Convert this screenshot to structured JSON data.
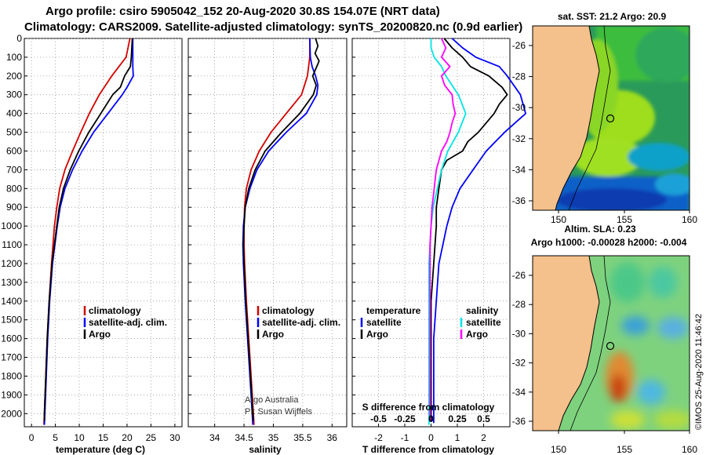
{
  "header": {
    "line1": "Argo profile: csiro 5905042_152 20-Aug-2020 30.8S 154.07E (NRT data)",
    "line2": "Climatology: CARS2009. Satellite-adjusted climatology: synTS_20200820.nc (0.9d earlier)"
  },
  "colors": {
    "climatology": "#d40000",
    "satellite": "#0000ff",
    "argo": "#000000",
    "sat_salinity": "#00e5e5",
    "argo_salinity": "#ff00ff",
    "land": "#f4c08c"
  },
  "depth_axis": {
    "ticks": [
      0,
      100,
      200,
      300,
      400,
      500,
      600,
      700,
      800,
      900,
      1000,
      1100,
      1200,
      1300,
      1400,
      1500,
      1600,
      1700,
      1800,
      1900,
      2000
    ],
    "ylim": [
      0,
      2070
    ]
  },
  "chart_data": [
    {
      "type": "line",
      "id": "temperature",
      "xlabel": "temperature (deg C)",
      "ylabel": "depth",
      "xlim": [
        -1.5,
        31.5
      ],
      "xticks": [
        0,
        5,
        10,
        15,
        20,
        25,
        30
      ],
      "legend": [
        "climatology",
        "satellite-adj. clim.",
        "Argo"
      ],
      "series": [
        {
          "name": "climatology",
          "depth": [
            0,
            50,
            100,
            200,
            300,
            400,
            500,
            600,
            700,
            800,
            900,
            1000,
            1200,
            1400,
            1600,
            1800,
            2000,
            2060
          ],
          "values": [
            20.6,
            20.2,
            19.8,
            16.8,
            14.2,
            12.1,
            10.3,
            8.6,
            7.0,
            5.9,
            5.3,
            4.8,
            4.2,
            3.7,
            3.3,
            3.0,
            2.7,
            2.6
          ]
        },
        {
          "name": "satellite-adj. clim.",
          "depth": [
            0,
            50,
            100,
            150,
            200,
            260,
            300,
            400,
            500,
            600,
            700,
            800,
            900,
            1000,
            1200,
            1400,
            1600,
            1800,
            2000,
            2060
          ],
          "values": [
            21.2,
            21.2,
            21.2,
            21.2,
            21.3,
            20.0,
            19.0,
            16.0,
            13.0,
            10.6,
            8.6,
            7.0,
            6.0,
            5.4,
            4.4,
            3.8,
            3.4,
            3.1,
            2.8,
            2.7
          ]
        },
        {
          "name": "Argo",
          "depth": [
            0,
            50,
            100,
            150,
            200,
            260,
            300,
            400,
            500,
            600,
            700,
            800,
            900,
            1000,
            1200,
            1400,
            1600,
            1800,
            2000,
            2040
          ],
          "values": [
            21.1,
            21.0,
            20.9,
            20.7,
            19.5,
            18.6,
            17.0,
            14.5,
            12.0,
            9.9,
            8.1,
            6.7,
            5.8,
            5.3,
            4.3,
            3.7,
            3.3,
            3.0,
            2.7,
            2.7
          ]
        }
      ]
    },
    {
      "type": "line",
      "id": "salinity",
      "xlabel": "salinity",
      "ylabel": "depth",
      "xlim": [
        33.55,
        36.25
      ],
      "xticks": [
        34,
        34.5,
        35,
        35.5,
        36
      ],
      "legend": [
        "climatology",
        "satellite-adj. clim.",
        "Argo"
      ],
      "annotation": [
        "Argo Australia",
        "PI: Susan Wijffels"
      ],
      "series": [
        {
          "name": "climatology",
          "depth": [
            0,
            100,
            200,
            300,
            400,
            500,
            600,
            700,
            800,
            900,
            1000,
            1100,
            1200,
            1400,
            1600,
            1800,
            2000,
            2060
          ],
          "values": [
            35.62,
            35.62,
            35.58,
            35.48,
            35.22,
            34.96,
            34.76,
            34.62,
            34.54,
            34.51,
            34.5,
            34.5,
            34.51,
            34.54,
            34.58,
            34.62,
            34.66,
            34.67
          ]
        },
        {
          "name": "satellite-adj. clim.",
          "depth": [
            0,
            100,
            150,
            200,
            250,
            300,
            400,
            500,
            600,
            700,
            800,
            900,
            1000,
            1100,
            1200,
            1400,
            1600,
            1800,
            2000,
            2060
          ],
          "values": [
            35.62,
            35.63,
            35.66,
            35.72,
            35.76,
            35.74,
            35.56,
            35.22,
            34.92,
            34.72,
            34.6,
            34.52,
            34.49,
            34.48,
            34.49,
            34.52,
            34.56,
            34.6,
            34.64,
            34.65
          ]
        },
        {
          "name": "Argo",
          "depth": [
            0,
            40,
            80,
            120,
            150,
            200,
            250,
            300,
            400,
            500,
            600,
            700,
            800,
            900,
            1000,
            1100,
            1200,
            1400,
            1600,
            1800,
            2000,
            2040
          ],
          "values": [
            35.72,
            35.76,
            35.71,
            35.78,
            35.74,
            35.67,
            35.73,
            35.68,
            35.45,
            35.14,
            34.86,
            34.69,
            34.58,
            34.52,
            34.5,
            34.49,
            34.5,
            34.53,
            34.57,
            34.61,
            34.65,
            34.66
          ]
        }
      ]
    },
    {
      "type": "line",
      "id": "difference",
      "xlabel": "T difference from climatology",
      "secondary_xlabel": "S difference from climatology",
      "xlim": [
        -3.0,
        3.0
      ],
      "xticks": [
        -2,
        -1,
        0,
        1,
        2
      ],
      "secondary_xticks_labels": [
        "-0.5",
        "-0.25",
        "0",
        "0.25",
        "0.5"
      ],
      "secondary_xticks": [
        -0.5,
        -0.25,
        0,
        0.25,
        0.5
      ],
      "secondary_xlim": [
        -0.75,
        0.75
      ],
      "legend_temperature": [
        "temperature",
        "satellite",
        "Argo"
      ],
      "legend_salinity": [
        "salinity",
        "satellite",
        "Argo"
      ],
      "series": [
        {
          "name": "T satellite",
          "axis": "T",
          "depth": [
            0,
            50,
            100,
            150,
            200,
            300,
            400,
            500,
            600,
            700,
            800,
            900,
            1000,
            1200,
            1400,
            1600,
            1800,
            2000,
            2050
          ],
          "values": [
            0.8,
            1.2,
            1.7,
            2.6,
            2.9,
            3.4,
            3.6,
            2.8,
            2.1,
            1.6,
            1.1,
            0.8,
            0.6,
            0.3,
            0.2,
            0.1,
            0.1,
            0.1,
            0.1
          ]
        },
        {
          "name": "T Argo",
          "axis": "T",
          "depth": [
            0,
            50,
            100,
            150,
            200,
            260,
            300,
            350,
            400,
            450,
            500,
            550,
            600,
            650,
            700,
            800,
            900,
            1000,
            1200,
            1400,
            1600,
            1800,
            2000,
            2040
          ],
          "values": [
            0.5,
            0.8,
            1.2,
            1.5,
            2.2,
            2.7,
            2.9,
            2.6,
            2.4,
            2.1,
            1.8,
            1.4,
            1.2,
            0.6,
            0.4,
            0.3,
            0.2,
            0.2,
            0.1,
            0.0,
            0.0,
            0.0,
            0.0,
            0.0
          ]
        },
        {
          "name": "S satellite",
          "axis": "S",
          "depth": [
            0,
            50,
            100,
            150,
            200,
            300,
            400,
            500,
            600,
            700,
            800,
            900,
            1000,
            1200,
            1400,
            1600,
            1800,
            2000,
            2060
          ],
          "values": [
            0.0,
            0.0,
            0.03,
            0.1,
            0.14,
            0.26,
            0.33,
            0.26,
            0.16,
            0.1,
            0.06,
            0.02,
            0.0,
            -0.02,
            -0.02,
            -0.02,
            -0.02,
            -0.02,
            -0.02
          ]
        },
        {
          "name": "S Argo",
          "axis": "S",
          "depth": [
            0,
            50,
            100,
            150,
            200,
            250,
            300,
            350,
            400,
            450,
            500,
            550,
            600,
            700,
            800,
            900,
            1000,
            1100,
            1200,
            1400,
            1600,
            1800,
            2000,
            2040
          ],
          "values": [
            0.1,
            0.14,
            0.1,
            0.18,
            0.1,
            0.13,
            0.2,
            0.21,
            0.23,
            0.2,
            0.18,
            0.15,
            0.1,
            0.05,
            0.03,
            0.01,
            0.0,
            -0.01,
            -0.01,
            -0.01,
            -0.01,
            -0.01,
            -0.01,
            -0.01
          ]
        }
      ]
    }
  ],
  "maps": {
    "top": {
      "title": "sat. SST: 21.2  Argo: 20.9",
      "lat_ticks": [
        "-26",
        "-28",
        "-30",
        "-32",
        "-34",
        "-36"
      ],
      "lon_ticks": [
        "150",
        "155",
        "160"
      ]
    },
    "bottom": {
      "title1": "Altim. SLA: 0.23",
      "title2": "Argo h1000: -0.00028 h2000: -0.004",
      "lat_ticks": [
        "-26",
        "-28",
        "-30",
        "-32",
        "-34",
        "-36"
      ],
      "lon_ticks": [
        "150",
        "155",
        "160"
      ]
    }
  },
  "footer": {
    "credit": "©IMOS 25-Aug-2020 11:46:42"
  }
}
